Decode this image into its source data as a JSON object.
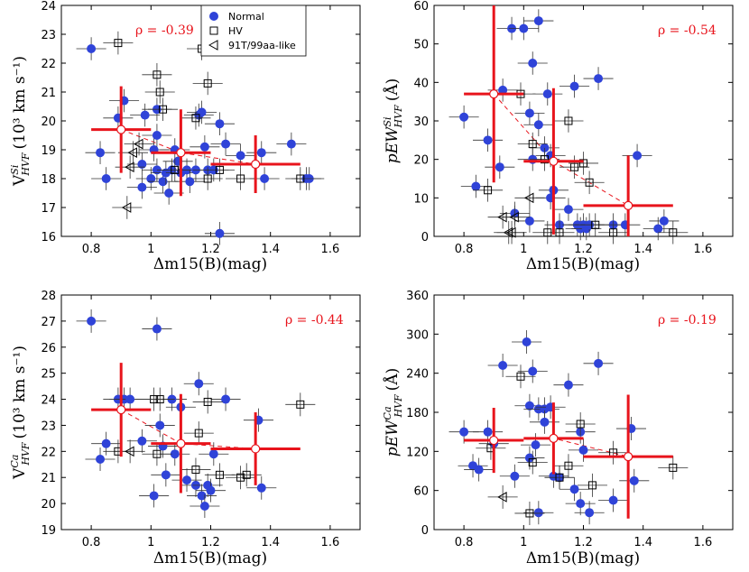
{
  "chart_data": [
    {
      "type": "scatter",
      "id": "v-si",
      "title": "",
      "xlabel": "Δm15(B)(mag)",
      "ylabel": "V HVF Si (10³ km s⁻¹)",
      "ylabel_main": "V",
      "ylabel_sup": "Si",
      "ylabel_sub": "HVF",
      "ylabel_units": "(10³ km s⁻¹)",
      "xlim": [
        0.7,
        1.7
      ],
      "ylim": [
        16,
        24
      ],
      "xticks": [
        "0.8",
        "1",
        "1.2",
        "1.4",
        "1.6"
      ],
      "xtick_values": [
        0.8,
        1.0,
        1.2,
        1.4,
        1.6
      ],
      "yticks": [
        "16",
        "17",
        "18",
        "19",
        "20",
        "21",
        "22",
        "23",
        "24"
      ],
      "ytick_values": [
        16,
        17,
        18,
        19,
        20,
        21,
        22,
        23,
        24
      ],
      "annotation": "ρ = -0.39",
      "annotation_pos": "top-left",
      "legend": {
        "position": "top-center",
        "entries": [
          {
            "label": "Normal",
            "marker": "circle"
          },
          {
            "label": "HV",
            "marker": "square"
          },
          {
            "label": "91T/99aa-like",
            "marker": "triangle"
          }
        ]
      },
      "series": [
        {
          "name": "Normal",
          "marker": "circle",
          "points": [
            [
              0.8,
              22.5
            ],
            [
              0.83,
              18.9
            ],
            [
              0.85,
              18.0
            ],
            [
              0.89,
              20.1
            ],
            [
              0.91,
              20.7
            ],
            [
              0.97,
              18.5
            ],
            [
              0.97,
              17.7
            ],
            [
              0.98,
              20.2
            ],
            [
              1.0,
              18.0
            ],
            [
              1.01,
              19.0
            ],
            [
              1.02,
              20.4
            ],
            [
              1.02,
              19.5
            ],
            [
              1.02,
              18.3
            ],
            [
              1.04,
              17.9
            ],
            [
              1.05,
              18.2
            ],
            [
              1.06,
              17.5
            ],
            [
              1.07,
              18.3
            ],
            [
              1.08,
              19.0
            ],
            [
              1.09,
              18.6
            ],
            [
              1.1,
              18.2
            ],
            [
              1.12,
              18.3
            ],
            [
              1.13,
              17.9
            ],
            [
              1.15,
              18.3
            ],
            [
              1.16,
              20.2
            ],
            [
              1.17,
              20.3
            ],
            [
              1.18,
              19.1
            ],
            [
              1.19,
              18.3
            ],
            [
              1.21,
              18.3
            ],
            [
              1.23,
              19.9
            ],
            [
              1.23,
              16.1
            ],
            [
              1.25,
              19.2
            ],
            [
              1.3,
              18.8
            ],
            [
              1.35,
              18.5
            ],
            [
              1.37,
              18.9
            ],
            [
              1.38,
              18.0
            ],
            [
              1.47,
              19.2
            ],
            [
              1.52,
              18.0
            ],
            [
              1.53,
              18.0
            ]
          ]
        },
        {
          "name": "HV",
          "marker": "square",
          "points": [
            [
              0.89,
              22.7
            ],
            [
              1.02,
              21.6
            ],
            [
              1.03,
              21.0
            ],
            [
              1.04,
              20.4
            ],
            [
              1.15,
              20.1
            ],
            [
              1.17,
              22.5
            ],
            [
              1.19,
              21.3
            ],
            [
              1.19,
              18.0
            ],
            [
              1.23,
              18.3
            ],
            [
              1.3,
              18.0
            ],
            [
              1.5,
              18.0
            ],
            [
              1.08,
              18.3
            ]
          ]
        },
        {
          "name": "91T/99aa-like",
          "marker": "triangle",
          "points": [
            [
              0.92,
              17.0
            ],
            [
              0.93,
              18.4
            ],
            [
              0.94,
              18.9
            ],
            [
              0.96,
              19.2
            ]
          ]
        }
      ],
      "binned_means": {
        "x": [
          0.9,
          1.1,
          1.35
        ],
        "y": [
          19.7,
          18.9,
          18.5
        ],
        "xerr": [
          0.1,
          0.1,
          0.15
        ],
        "yerr": [
          1.5,
          1.5,
          1.0
        ]
      }
    },
    {
      "type": "scatter",
      "id": "pew-si",
      "title": "",
      "xlabel": "Δm15(B)(mag)",
      "ylabel": "pEW HVF Si (Å)",
      "ylabel_main": "pEW",
      "ylabel_sup": "Si",
      "ylabel_sub": "HVF",
      "ylabel_units": "(Å)",
      "xlim": [
        0.7,
        1.7
      ],
      "ylim": [
        0,
        60
      ],
      "xticks": [
        "0.8",
        "1",
        "1.2",
        "1.4",
        "1.6"
      ],
      "xtick_values": [
        0.8,
        1.0,
        1.2,
        1.4,
        1.6
      ],
      "yticks": [
        "0",
        "10",
        "20",
        "30",
        "40",
        "50",
        "60"
      ],
      "ytick_values": [
        0,
        10,
        20,
        30,
        40,
        50,
        60
      ],
      "annotation": "ρ = -0.54",
      "annotation_pos": "top-right",
      "series": [
        {
          "name": "Normal",
          "marker": "circle",
          "points": [
            [
              0.8,
              31
            ],
            [
              0.84,
              13
            ],
            [
              0.88,
              25
            ],
            [
              0.92,
              18
            ],
            [
              0.93,
              38
            ],
            [
              0.96,
              54
            ],
            [
              0.97,
              6
            ],
            [
              1.0,
              54
            ],
            [
              1.02,
              32
            ],
            [
              1.02,
              4
            ],
            [
              1.03,
              45
            ],
            [
              1.03,
              20
            ],
            [
              1.05,
              56
            ],
            [
              1.05,
              29
            ],
            [
              1.07,
              23
            ],
            [
              1.08,
              37
            ],
            [
              1.09,
              21
            ],
            [
              1.09,
              10
            ],
            [
              1.1,
              12
            ],
            [
              1.12,
              3
            ],
            [
              1.15,
              7
            ],
            [
              1.17,
              39
            ],
            [
              1.18,
              3
            ],
            [
              1.19,
              2
            ],
            [
              1.2,
              3
            ],
            [
              1.21,
              2
            ],
            [
              1.22,
              3
            ],
            [
              1.25,
              41
            ],
            [
              1.3,
              3
            ],
            [
              1.34,
              3
            ],
            [
              1.38,
              21
            ],
            [
              1.45,
              2
            ],
            [
              1.47,
              4
            ]
          ]
        },
        {
          "name": "HV",
          "marker": "square",
          "points": [
            [
              0.88,
              12
            ],
            [
              0.99,
              37
            ],
            [
              1.03,
              24
            ],
            [
              1.07,
              20
            ],
            [
              1.15,
              30
            ],
            [
              1.17,
              18
            ],
            [
              1.2,
              19
            ],
            [
              1.22,
              14
            ],
            [
              1.24,
              3
            ],
            [
              1.3,
              1
            ],
            [
              1.5,
              1
            ],
            [
              1.12,
              1
            ],
            [
              1.08,
              1
            ]
          ]
        },
        {
          "name": "91T/99aa-like",
          "marker": "triangle",
          "points": [
            [
              0.93,
              5
            ],
            [
              0.95,
              1
            ],
            [
              0.96,
              1
            ],
            [
              0.97,
              5
            ],
            [
              1.02,
              10
            ]
          ]
        }
      ],
      "binned_means": {
        "x": [
          0.9,
          1.1,
          1.35
        ],
        "y": [
          37,
          19.5,
          8
        ],
        "xerr": [
          0.1,
          0.1,
          0.15
        ],
        "yerr": [
          23,
          19,
          13
        ]
      }
    },
    {
      "type": "scatter",
      "id": "v-ca",
      "title": "",
      "xlabel": "Δm15(B)(mag)",
      "ylabel": "V HVF Ca (10³ km s⁻¹)",
      "ylabel_main": "V",
      "ylabel_sup": "Ca",
      "ylabel_sub": "HVF",
      "ylabel_units": "(10³ km s⁻¹)",
      "xlim": [
        0.7,
        1.7
      ],
      "ylim": [
        19,
        28
      ],
      "xticks": [
        "0.8",
        "1",
        "1.2",
        "1.4",
        "1.6"
      ],
      "xtick_values": [
        0.8,
        1.0,
        1.2,
        1.4,
        1.6
      ],
      "yticks": [
        "19",
        "20",
        "21",
        "22",
        "23",
        "24",
        "25",
        "26",
        "27",
        "28"
      ],
      "ytick_values": [
        19,
        20,
        21,
        22,
        23,
        24,
        25,
        26,
        27,
        28
      ],
      "annotation": "ρ = -0.44",
      "annotation_pos": "top-right",
      "series": [
        {
          "name": "Normal",
          "marker": "circle",
          "points": [
            [
              0.8,
              27.0
            ],
            [
              0.83,
              21.7
            ],
            [
              0.85,
              22.3
            ],
            [
              0.89,
              24.0
            ],
            [
              0.91,
              24.0
            ],
            [
              0.93,
              24.0
            ],
            [
              0.97,
              22.4
            ],
            [
              1.01,
              20.3
            ],
            [
              1.02,
              26.7
            ],
            [
              1.03,
              23.0
            ],
            [
              1.04,
              22.2
            ],
            [
              1.05,
              21.1
            ],
            [
              1.07,
              24.0
            ],
            [
              1.08,
              21.9
            ],
            [
              1.1,
              23.7
            ],
            [
              1.12,
              20.9
            ],
            [
              1.15,
              20.7
            ],
            [
              1.16,
              24.6
            ],
            [
              1.17,
              20.3
            ],
            [
              1.18,
              19.9
            ],
            [
              1.19,
              20.7
            ],
            [
              1.2,
              20.5
            ],
            [
              1.21,
              21.9
            ],
            [
              1.25,
              24.0
            ],
            [
              1.36,
              23.2
            ],
            [
              1.37,
              20.6
            ]
          ]
        },
        {
          "name": "HV",
          "marker": "square",
          "points": [
            [
              0.89,
              22.0
            ],
            [
              1.01,
              24.0
            ],
            [
              1.03,
              24.0
            ],
            [
              1.02,
              21.9
            ],
            [
              1.15,
              21.3
            ],
            [
              1.16,
              22.7
            ],
            [
              1.19,
              23.9
            ],
            [
              1.23,
              21.1
            ],
            [
              1.3,
              21.0
            ],
            [
              1.32,
              21.1
            ],
            [
              1.5,
              23.8
            ]
          ]
        },
        {
          "name": "91T/99aa-like",
          "marker": "triangle",
          "points": [
            [
              0.93,
              22.0
            ]
          ]
        }
      ],
      "binned_means": {
        "x": [
          0.9,
          1.1,
          1.35
        ],
        "y": [
          23.6,
          22.3,
          22.1
        ],
        "xerr": [
          0.1,
          0.1,
          0.15
        ],
        "yerr": [
          1.8,
          1.9,
          1.4
        ]
      }
    },
    {
      "type": "scatter",
      "id": "pew-ca",
      "title": "",
      "xlabel": "Δm15(B)(mag)",
      "ylabel": "pEW HVF Ca (Å)",
      "ylabel_main": "pEW",
      "ylabel_sup": "Ca",
      "ylabel_sub": "HVF",
      "ylabel_units": "(Å)",
      "xlim": [
        0.7,
        1.7
      ],
      "ylim": [
        0,
        360
      ],
      "xticks": [
        "0.8",
        "1",
        "1.2",
        "1.4",
        "1.6"
      ],
      "xtick_values": [
        0.8,
        1.0,
        1.2,
        1.4,
        1.6
      ],
      "yticks": [
        "0",
        "60",
        "120",
        "180",
        "240",
        "300",
        "360"
      ],
      "ytick_values": [
        0,
        60,
        120,
        180,
        240,
        300,
        360
      ],
      "annotation": "ρ = -0.19",
      "annotation_pos": "top-right",
      "series": [
        {
          "name": "Normal",
          "marker": "circle",
          "points": [
            [
              0.8,
              150
            ],
            [
              0.83,
              98
            ],
            [
              0.85,
              92
            ],
            [
              0.88,
              150
            ],
            [
              0.9,
              132
            ],
            [
              0.93,
              252
            ],
            [
              0.97,
              82
            ],
            [
              1.01,
              288
            ],
            [
              1.02,
              190
            ],
            [
              1.02,
              110
            ],
            [
              1.03,
              243
            ],
            [
              1.04,
              130
            ],
            [
              1.05,
              26
            ],
            [
              1.05,
              185
            ],
            [
              1.07,
              185
            ],
            [
              1.07,
              165
            ],
            [
              1.09,
              188
            ],
            [
              1.1,
              82
            ],
            [
              1.12,
              80
            ],
            [
              1.15,
              222
            ],
            [
              1.17,
              62
            ],
            [
              1.19,
              150
            ],
            [
              1.19,
              40
            ],
            [
              1.2,
              122
            ],
            [
              1.22,
              26
            ],
            [
              1.25,
              255
            ],
            [
              1.3,
              45
            ],
            [
              1.36,
              155
            ],
            [
              1.37,
              75
            ]
          ]
        },
        {
          "name": "HV",
          "marker": "square",
          "points": [
            [
              0.89,
              125
            ],
            [
              0.99,
              235
            ],
            [
              1.03,
              103
            ],
            [
              1.02,
              25
            ],
            [
              1.12,
              80
            ],
            [
              1.15,
              98
            ],
            [
              1.19,
              162
            ],
            [
              1.23,
              68
            ],
            [
              1.3,
              118
            ],
            [
              1.5,
              95
            ]
          ]
        },
        {
          "name": "91T/99aa-like",
          "marker": "triangle",
          "points": [
            [
              0.93,
              50
            ]
          ]
        }
      ],
      "binned_means": {
        "x": [
          0.9,
          1.1,
          1.35
        ],
        "y": [
          137,
          140,
          112
        ],
        "xerr": [
          0.1,
          0.1,
          0.15
        ],
        "yerr": [
          50,
          55,
          95
        ]
      }
    }
  ]
}
